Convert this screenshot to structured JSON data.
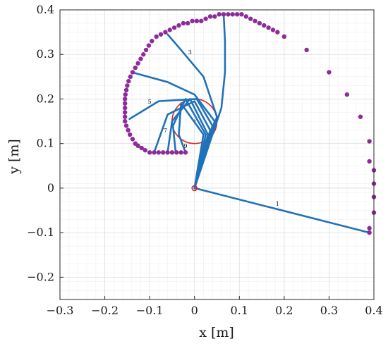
{
  "chart_data": {
    "type": "scatter",
    "xlabel": "x [m]",
    "ylabel": "y [m]",
    "xlim": [
      -0.3,
      0.4
    ],
    "ylim": [
      -0.25,
      0.4
    ],
    "grid": true,
    "x_ticks": [
      -0.3,
      -0.2,
      -0.1,
      0,
      0.1,
      0.2,
      0.3,
      0.4
    ],
    "x_tick_labels": [
      "−0.3",
      "−0.2",
      "−0.1",
      "0",
      "0.1",
      "0.2",
      "0.3",
      "0.4"
    ],
    "y_ticks": [
      -0.2,
      -0.1,
      0,
      0.1,
      0.2,
      0.3,
      0.4
    ],
    "y_tick_labels": [
      "−0.2",
      "−0.1",
      "0",
      "0.1",
      "0.2",
      "0.3",
      "0.4"
    ],
    "circle": {
      "center": [
        0,
        0.15
      ],
      "radius": 0.05,
      "color": "#d62728"
    },
    "center_marker": {
      "x": 0,
      "y": 0.15,
      "color": "#d62728"
    },
    "origin_marker": {
      "x": 0,
      "y": 0,
      "color": "#d62728"
    },
    "points_color": "#8e2a9a",
    "points": [
      [
        0.39,
        -0.1
      ],
      [
        0.39,
        -0.09
      ],
      [
        0.4,
        -0.055
      ],
      [
        0.4,
        -0.02
      ],
      [
        0.4,
        0.01
      ],
      [
        0.4,
        0.04
      ],
      [
        0.39,
        0.06
      ],
      [
        0.39,
        0.105
      ],
      [
        0.37,
        0.16
      ],
      [
        0.34,
        0.21
      ],
      [
        0.3,
        0.26
      ],
      [
        0.25,
        0.31
      ],
      [
        0.2,
        0.34
      ],
      [
        0.185,
        0.35
      ],
      [
        0.175,
        0.355
      ],
      [
        0.165,
        0.36
      ],
      [
        0.155,
        0.365
      ],
      [
        0.145,
        0.37
      ],
      [
        0.135,
        0.375
      ],
      [
        0.125,
        0.38
      ],
      [
        0.115,
        0.385
      ],
      [
        0.105,
        0.39
      ],
      [
        0.095,
        0.39
      ],
      [
        0.085,
        0.39
      ],
      [
        0.075,
        0.39
      ],
      [
        0.065,
        0.39
      ],
      [
        0.055,
        0.39
      ],
      [
        0.045,
        0.385
      ],
      [
        0.035,
        0.385
      ],
      [
        0.025,
        0.38
      ],
      [
        0.015,
        0.375
      ],
      [
        0.005,
        0.375
      ],
      [
        -0.005,
        0.375
      ],
      [
        -0.015,
        0.37
      ],
      [
        -0.025,
        0.37
      ],
      [
        -0.035,
        0.365
      ],
      [
        -0.045,
        0.36
      ],
      [
        -0.055,
        0.355
      ],
      [
        -0.065,
        0.35
      ],
      [
        -0.075,
        0.345
      ],
      [
        -0.085,
        0.34
      ],
      [
        -0.095,
        0.33
      ],
      [
        -0.102,
        0.32
      ],
      [
        -0.108,
        0.31
      ],
      [
        -0.114,
        0.3
      ],
      [
        -0.12,
        0.29
      ],
      [
        -0.126,
        0.28
      ],
      [
        -0.132,
        0.27
      ],
      [
        -0.138,
        0.26
      ],
      [
        -0.143,
        0.25
      ],
      [
        -0.147,
        0.24
      ],
      [
        -0.15,
        0.23
      ],
      [
        -0.152,
        0.22
      ],
      [
        -0.154,
        0.21
      ],
      [
        -0.155,
        0.2
      ],
      [
        -0.155,
        0.19
      ],
      [
        -0.155,
        0.18
      ],
      [
        -0.155,
        0.17
      ],
      [
        -0.155,
        0.16
      ],
      [
        -0.155,
        0.15
      ],
      [
        -0.152,
        0.14
      ],
      [
        -0.148,
        0.13
      ],
      [
        -0.144,
        0.12
      ],
      [
        -0.138,
        0.11
      ],
      [
        -0.132,
        0.1
      ],
      [
        -0.126,
        0.095
      ],
      [
        -0.118,
        0.09
      ],
      [
        -0.11,
        0.085
      ],
      [
        -0.1,
        0.08
      ],
      [
        -0.09,
        0.08
      ],
      [
        -0.08,
        0.08
      ],
      [
        -0.07,
        0.08
      ],
      [
        -0.06,
        0.08
      ],
      [
        -0.05,
        0.08
      ],
      [
        -0.04,
        0.08
      ],
      [
        -0.03,
        0.08
      ],
      [
        -0.02,
        0.08
      ]
    ],
    "lines_color": "#1f72b8",
    "lines": [
      {
        "label": "1",
        "label_at": [
          0.185,
          -0.04
        ],
        "points": [
          [
            0,
            0
          ],
          [
            0.39,
            -0.1
          ]
        ]
      },
      {
        "label": "",
        "label_at": null,
        "points": [
          [
            0,
            0
          ],
          [
            0.06,
            0.18
          ],
          [
            0.068,
            0.26
          ],
          [
            0.068,
            0.33
          ],
          [
            0.065,
            0.39
          ]
        ]
      },
      {
        "label": "3",
        "label_at": [
          -0.01,
          0.3
        ],
        "points": [
          [
            0,
            0
          ],
          [
            0.05,
            0.16
          ],
          [
            0.02,
            0.25
          ],
          [
            -0.03,
            0.31
          ],
          [
            -0.06,
            0.345
          ]
        ]
      },
      {
        "label": "",
        "label_at": null,
        "points": [
          [
            0,
            0
          ],
          [
            0.045,
            0.15
          ],
          [
            0.0,
            0.21
          ],
          [
            -0.06,
            0.238
          ],
          [
            -0.14,
            0.26
          ]
        ]
      },
      {
        "label": "5",
        "label_at": [
          -0.1,
          0.19
        ],
        "points": [
          [
            0,
            0
          ],
          [
            0.04,
            0.14
          ],
          [
            0.005,
            0.2
          ],
          [
            -0.08,
            0.195
          ],
          [
            -0.145,
            0.155
          ]
        ]
      },
      {
        "label": "",
        "label_at": null,
        "points": [
          [
            0,
            0
          ],
          [
            0.035,
            0.13
          ],
          [
            0.0,
            0.195
          ],
          [
            -0.06,
            0.165
          ],
          [
            -0.09,
            0.08
          ]
        ]
      },
      {
        "label": "7",
        "label_at": [
          -0.065,
          0.125
        ],
        "points": [
          [
            0,
            0
          ],
          [
            0.03,
            0.12
          ],
          [
            -0.01,
            0.2
          ],
          [
            -0.05,
            0.15
          ],
          [
            -0.06,
            0.08
          ]
        ]
      },
      {
        "label": "",
        "label_at": null,
        "points": [
          [
            0,
            0
          ],
          [
            0.025,
            0.12
          ],
          [
            -0.02,
            0.2
          ],
          [
            -0.048,
            0.14
          ],
          [
            -0.042,
            0.08
          ]
        ]
      },
      {
        "label": "9",
        "label_at": [
          -0.02,
          0.09
        ],
        "points": [
          [
            0,
            0
          ],
          [
            0.02,
            0.12
          ],
          [
            -0.03,
            0.19
          ],
          [
            -0.035,
            0.12
          ],
          [
            -0.02,
            0.08
          ]
        ]
      }
    ]
  }
}
